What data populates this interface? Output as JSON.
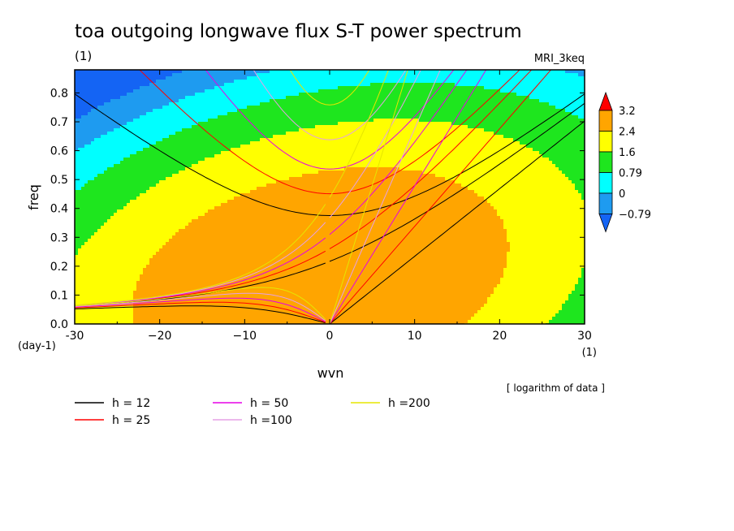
{
  "chart_data": {
    "type": "heatmap",
    "title": "toa outgoing longwave flux S-T power spectrum",
    "title_units": "(1)",
    "model_label": "MRI_3keq",
    "xlabel": "wvn",
    "ylabel": "freq",
    "x_units": "(1)",
    "y_units": "(day-1)",
    "xlim": [
      -30,
      30
    ],
    "ylim": [
      0.0,
      0.88
    ],
    "x_ticks": [
      -30,
      -20,
      -10,
      0,
      10,
      20,
      30
    ],
    "x_tick_labels": [
      "-30",
      "−20",
      "−10",
      "0",
      "10",
      "20",
      "30"
    ],
    "y_ticks": [
      0.0,
      0.1,
      0.2,
      0.3,
      0.4,
      0.5,
      0.6,
      0.7,
      0.8
    ],
    "y_tick_labels": [
      "0.0",
      "0.1",
      "0.2",
      "0.3",
      "0.4",
      "0.5",
      "0.6",
      "0.7",
      "0.8"
    ],
    "note": "[ logarithm of data ]",
    "colorbar": {
      "levels": [
        -0.79,
        0,
        0.79,
        1.6,
        2.4,
        3.2
      ],
      "labels": [
        "−0.79",
        "0",
        "0.79",
        "1.6",
        "2.4",
        "3.2"
      ],
      "colors": [
        "#1464f4",
        "#1e9bf0",
        "#00ffff",
        "#1ee61e",
        "#ffff00",
        "#ffa500",
        "#ff0000"
      ]
    },
    "dispersion_curves": [
      {
        "name": "h = 12",
        "h": 12,
        "color": "#000000"
      },
      {
        "name": "h = 25",
        "h": 25,
        "color": "#ff0000"
      },
      {
        "name": "h = 50",
        "h": 50,
        "color": "#e600e6"
      },
      {
        "name": "h =100",
        "h": 100,
        "color": "#e6a0e6"
      },
      {
        "name": "h =200",
        "h": 200,
        "color": "#e6e600"
      }
    ]
  }
}
